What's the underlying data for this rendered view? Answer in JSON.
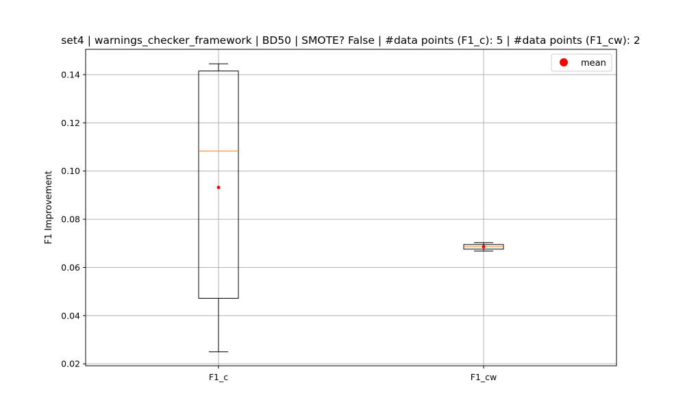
{
  "chart_data": {
    "type": "box",
    "title": "set4 | warnings_checker_framework | BD50 | SMOTE? False | #data points (F1_c): 5 | #data points (F1_cw): 2",
    "xlabel": "",
    "ylabel": "F1 Improvement",
    "ylim": [
      0.0192,
      0.1505
    ],
    "yticks": [
      0.02,
      0.04,
      0.06,
      0.08,
      0.1,
      0.12,
      0.14
    ],
    "ytick_labels": [
      "0.02",
      "0.04",
      "0.06",
      "0.08",
      "0.10",
      "0.12",
      "0.14"
    ],
    "categories": [
      "F1_c",
      "F1_cw"
    ],
    "boxes": [
      {
        "category": "F1_c",
        "whisker_low": 0.025,
        "q1": 0.0472,
        "median": 0.1083,
        "q3": 0.1415,
        "whisker_high": 0.1445,
        "mean": 0.0932
      },
      {
        "category": "F1_cw",
        "whisker_low": 0.0668,
        "q1": 0.0676,
        "median": 0.0686,
        "q3": 0.0695,
        "whisker_high": 0.0703,
        "mean": 0.0686
      }
    ],
    "grid": true,
    "legend": {
      "placement": "top-right",
      "entries": [
        {
          "label": "mean"
        }
      ]
    },
    "colors": {
      "box": "#000000",
      "median": "#ff7f0e",
      "mean": "#ff0000",
      "grid": "#b0b0b0"
    }
  }
}
